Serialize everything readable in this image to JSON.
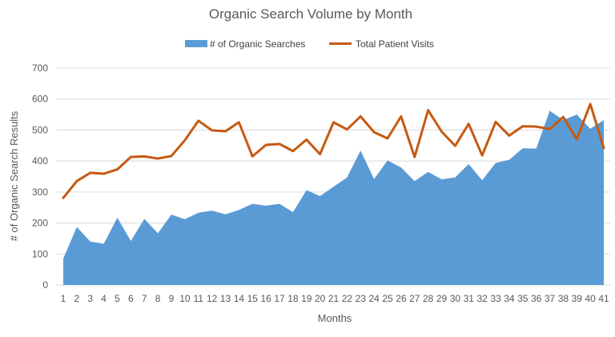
{
  "chart_data": {
    "type": "area",
    "title": "Organic Search Volume by Month",
    "xlabel": "Months",
    "ylabel": "# of Organic Search Results",
    "ylim": [
      0,
      700
    ],
    "yticks": [
      0,
      100,
      200,
      300,
      400,
      500,
      600,
      700
    ],
    "grid": true,
    "legend_position": "top",
    "categories": [
      "1",
      "2",
      "3",
      "4",
      "5",
      "6",
      "7",
      "8",
      "9",
      "10",
      "11",
      "12",
      "13",
      "14",
      "15",
      "16",
      "17",
      "18",
      "19",
      "20",
      "21",
      "22",
      "23",
      "24",
      "25",
      "26",
      "27",
      "28",
      "29",
      "30",
      "31",
      "32",
      "33",
      "34",
      "35",
      "36",
      "37",
      "38",
      "39",
      "40",
      "41"
    ],
    "series": [
      {
        "name": "# of Organic Searches",
        "type": "area",
        "color": "#5b9bd5",
        "values": [
          85,
          187,
          140,
          133,
          217,
          142,
          213,
          167,
          227,
          212,
          233,
          240,
          228,
          242,
          262,
          256,
          262,
          235,
          306,
          287,
          317,
          347,
          434,
          342,
          402,
          379,
          335,
          365,
          341,
          347,
          390,
          338,
          394,
          404,
          441,
          440,
          562,
          532,
          550,
          504,
          532
        ]
      },
      {
        "name": "Total Patient Visits",
        "type": "line",
        "color": "#c55a11",
        "values": [
          281,
          335,
          362,
          359,
          373,
          413,
          415,
          408,
          416,
          467,
          530,
          499,
          496,
          525,
          415,
          452,
          455,
          432,
          469,
          422,
          525,
          502,
          544,
          493,
          473,
          544,
          413,
          564,
          495,
          449,
          520,
          418,
          526,
          482,
          512,
          511,
          503,
          542,
          470,
          584,
          442
        ]
      }
    ]
  }
}
